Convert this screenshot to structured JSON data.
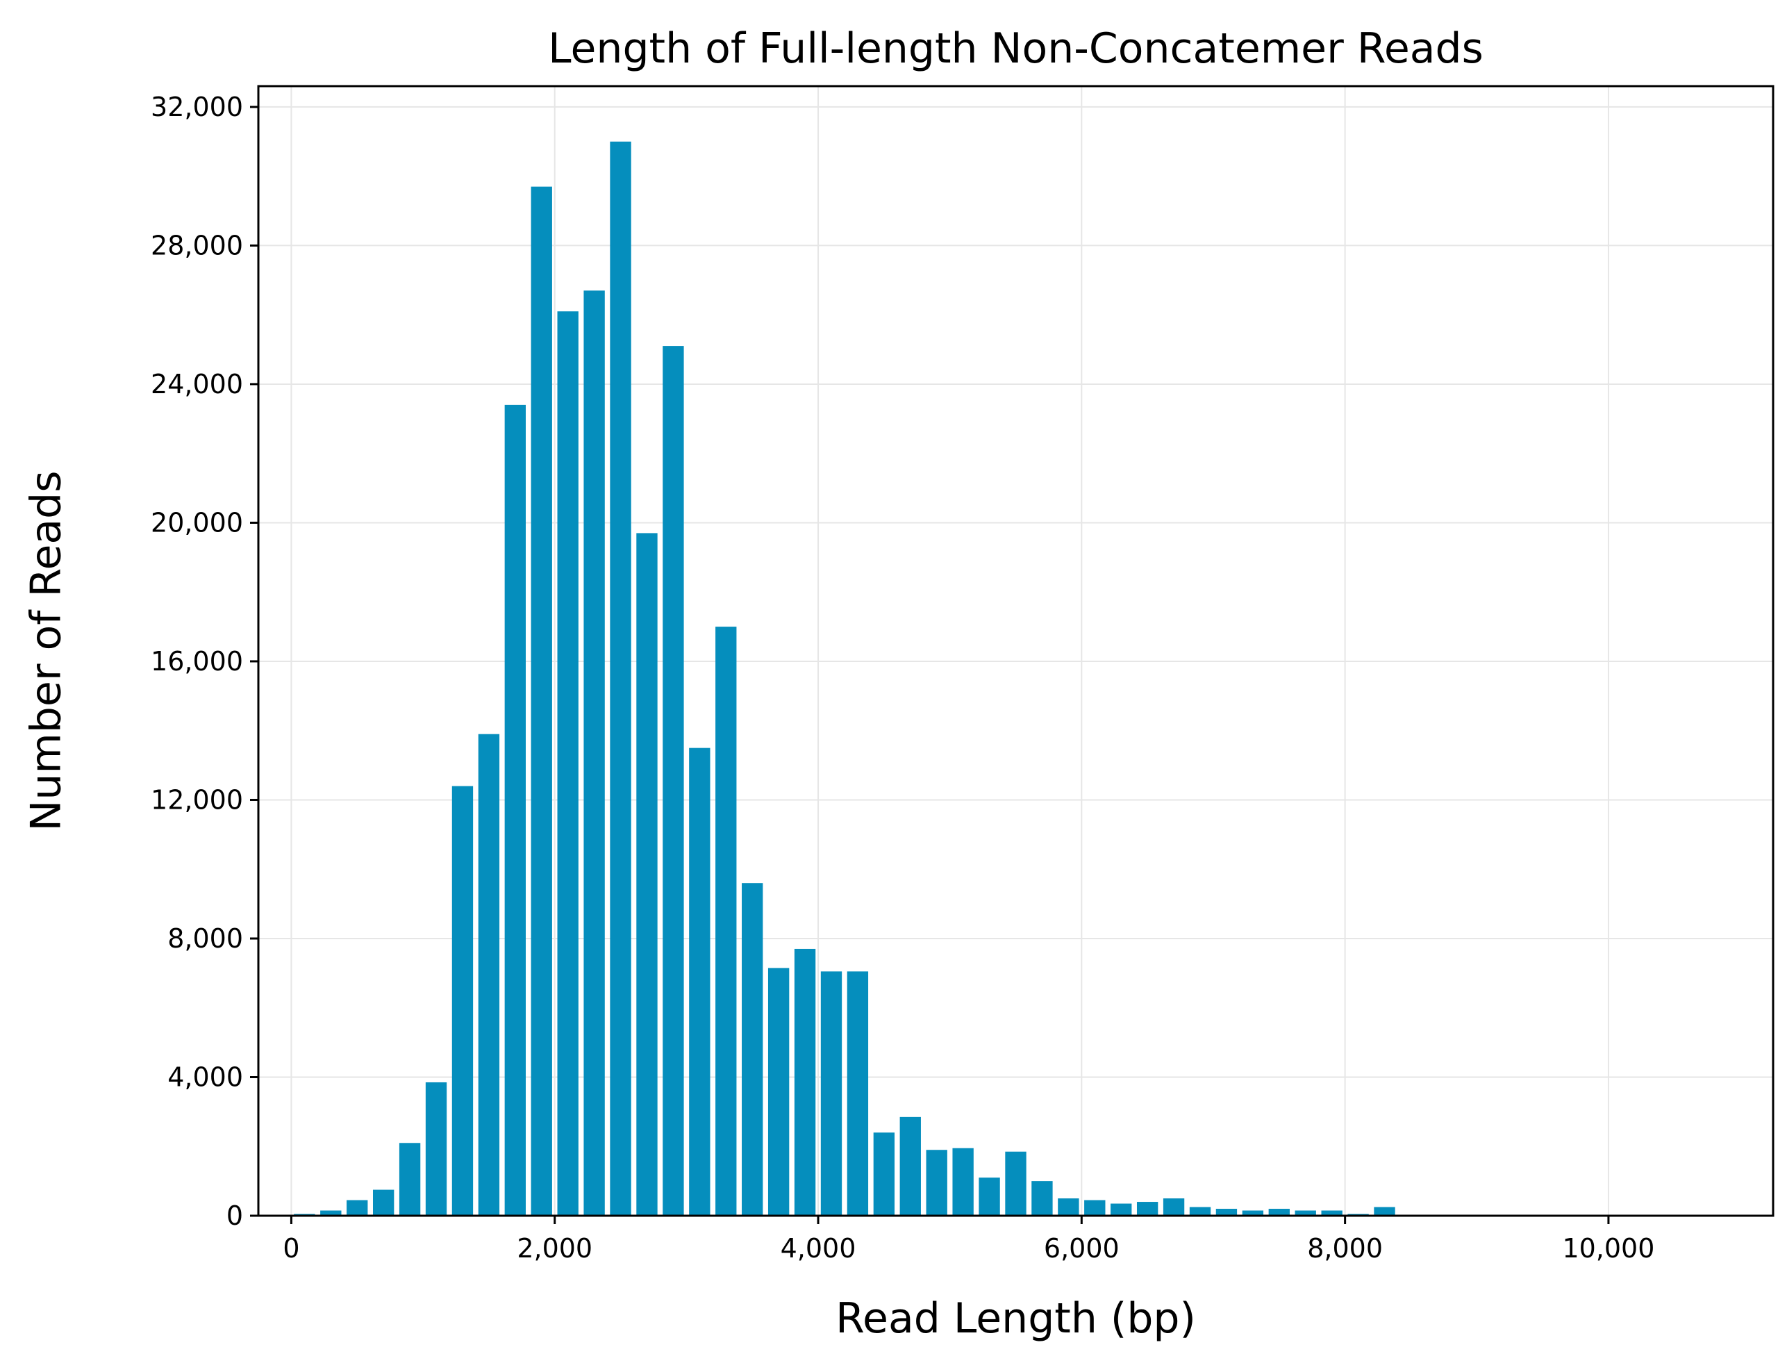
{
  "chart_data": {
    "type": "bar",
    "title": "Length of Full-length Non-Concatemer Reads",
    "xlabel": "Read Length (bp)",
    "ylabel": "Number of Reads",
    "xlim": [
      -250,
      11250
    ],
    "ylim": [
      0,
      32600
    ],
    "x_ticks": [
      0,
      2000,
      4000,
      6000,
      8000,
      10000
    ],
    "x_tick_labels": [
      "0",
      "2,000",
      "4,000",
      "6,000",
      "8,000",
      "10,000"
    ],
    "y_ticks": [
      0,
      4000,
      8000,
      12000,
      16000,
      20000,
      24000,
      28000,
      32000
    ],
    "y_tick_labels": [
      "0",
      "4,000",
      "8,000",
      "12,000",
      "16,000",
      "20,000",
      "24,000",
      "28,000",
      "32,000"
    ],
    "bin_width": 200,
    "bin_starts": [
      0,
      200,
      400,
      600,
      800,
      1000,
      1200,
      1400,
      1600,
      1800,
      2000,
      2200,
      2400,
      2600,
      2800,
      3000,
      3200,
      3400,
      3600,
      3800,
      4000,
      4200,
      4400,
      4600,
      4800,
      5000,
      5200,
      5400,
      5600,
      5800,
      6000,
      6200,
      6400,
      6600,
      6800,
      7000,
      7200,
      7400,
      7600,
      7800,
      8000,
      8200
    ],
    "values": [
      50,
      150,
      450,
      750,
      2100,
      3850,
      12400,
      13900,
      23400,
      29700,
      26100,
      26700,
      31000,
      19700,
      25100,
      13500,
      17000,
      9600,
      7150,
      7700,
      7050,
      7050,
      2400,
      2850,
      1900,
      1950,
      1100,
      1850,
      1000,
      500,
      450,
      350,
      400,
      500,
      250,
      200,
      150,
      200,
      150,
      150,
      50,
      250
    ],
    "bar_color": "#058ebd",
    "grid": true,
    "legend": "none"
  }
}
